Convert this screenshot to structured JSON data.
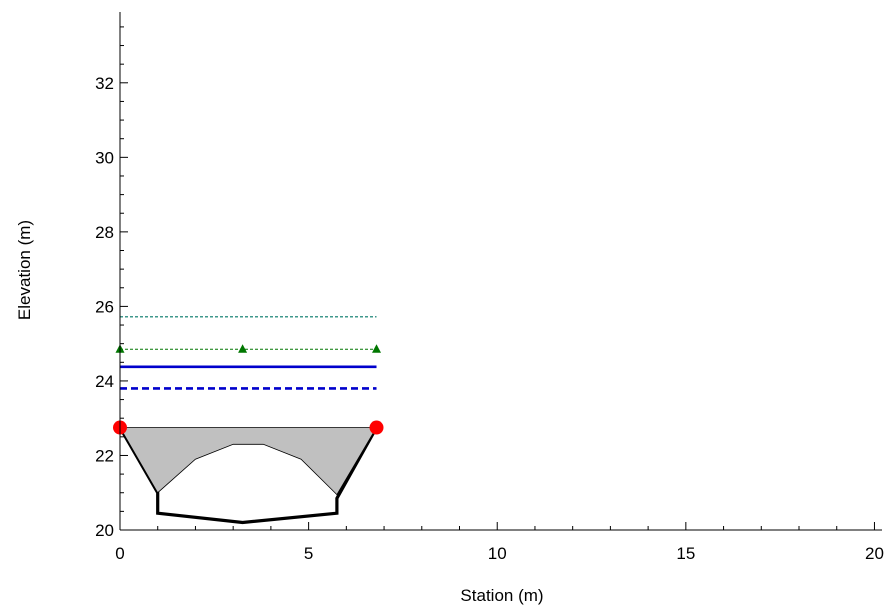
{
  "chart_data": {
    "type": "line",
    "title": "",
    "xlabel": "Station (m)",
    "ylabel": "Elevation (m)",
    "xlim": [
      0,
      20.2
    ],
    "ylim": [
      20,
      33.9
    ],
    "xticks": [
      0,
      5,
      10,
      15,
      20
    ],
    "xtick_labels": [
      "0",
      "5",
      "10",
      "15",
      "20"
    ],
    "yticks": [
      20,
      22,
      24,
      26,
      28,
      30,
      32
    ],
    "ytick_labels": [
      "20",
      "22",
      "24",
      "26",
      "28",
      "30",
      "32"
    ],
    "grid": false,
    "legend": "none",
    "colors": {
      "channel": "#000000",
      "fill": "#c0c0c0",
      "solid_level": "#0000cc",
      "dashed_level": "#0000cc",
      "triangle_level": "#007700",
      "top_dashed_level": "#007766",
      "bank_points": "#ff0000"
    },
    "series": [
      {
        "kind": "channel_outline",
        "x": [
          0,
          1.0,
          1.0,
          3.25,
          5.75,
          5.75,
          6.8
        ],
        "y": [
          22.75,
          21.0,
          20.45,
          20.2,
          20.45,
          20.85,
          22.75
        ]
      },
      {
        "kind": "filled_region",
        "x": [
          0,
          6.8,
          5.75,
          4.8,
          3.8,
          3.0,
          2.0,
          1.0
        ],
        "y": [
          22.75,
          22.75,
          20.95,
          21.9,
          22.3,
          22.3,
          21.9,
          21.0
        ]
      },
      {
        "kind": "level_dashed_thin",
        "x": [
          0,
          6.8
        ],
        "y": [
          25.72,
          25.72
        ]
      },
      {
        "kind": "level_triangles",
        "x": [
          0,
          3.25,
          6.8
        ],
        "y": [
          24.85,
          24.85,
          24.85
        ]
      },
      {
        "kind": "level_solid",
        "x": [
          0,
          6.8
        ],
        "y": [
          24.38,
          24.38
        ]
      },
      {
        "kind": "level_dashed",
        "x": [
          0,
          6.8
        ],
        "y": [
          23.8,
          23.8
        ]
      },
      {
        "kind": "bank_points",
        "x": [
          0,
          6.8
        ],
        "y": [
          22.75,
          22.75
        ]
      }
    ]
  }
}
